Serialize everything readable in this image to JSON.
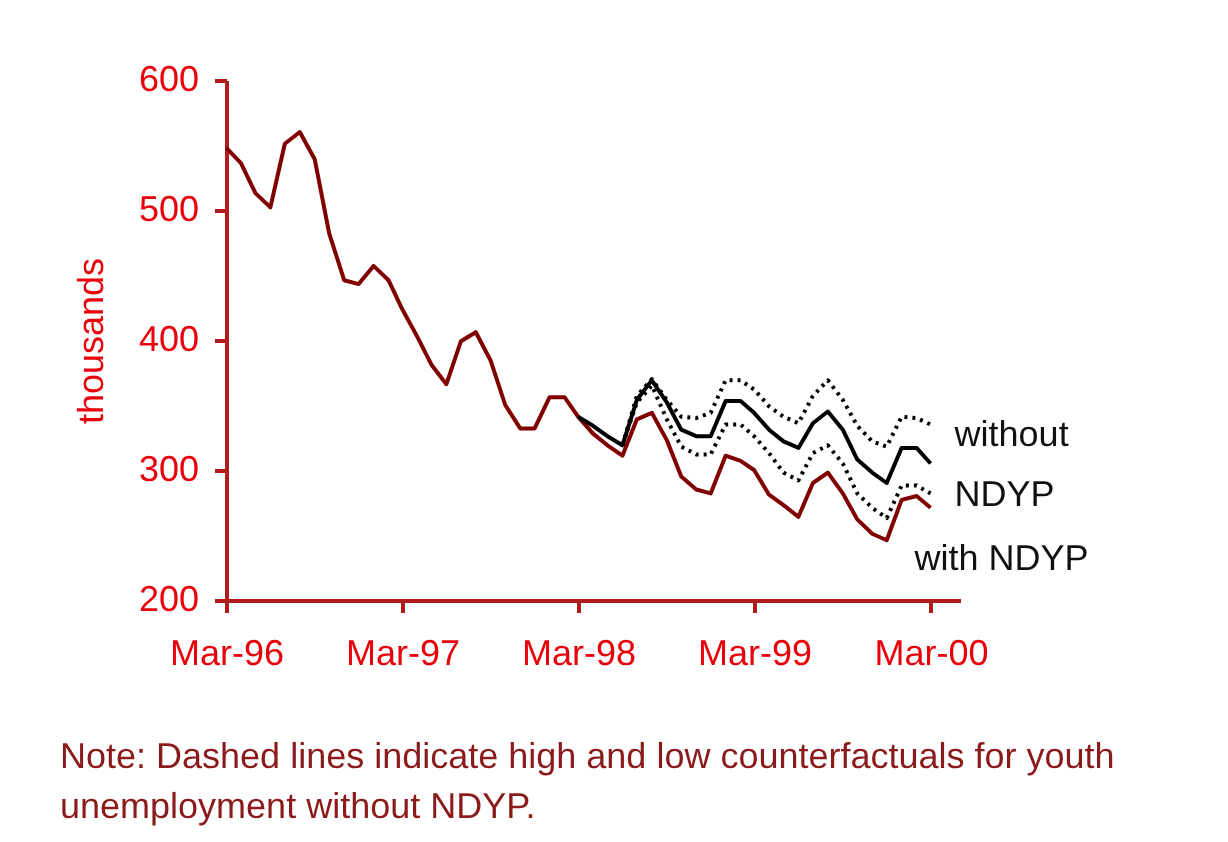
{
  "chart_data": {
    "type": "line",
    "ylabel": "thousands",
    "annotations": [
      "Note: Dashed lines indicate high and low counterfactuals for youth unemployment without NDYP."
    ],
    "xlim": [
      "1996-03",
      "2000-05"
    ],
    "xticks": [
      {
        "value": "1996-03",
        "label": "Mar-96"
      },
      {
        "value": "1997-03",
        "label": "Mar-97"
      },
      {
        "value": "1998-03",
        "label": "Mar-98"
      },
      {
        "value": "1999-03",
        "label": "Mar-99"
      },
      {
        "value": "2000-03",
        "label": "Mar-00"
      }
    ],
    "ylim": [
      200,
      600
    ],
    "yticks": [
      200,
      300,
      400,
      500,
      600
    ],
    "grid": false,
    "series": [
      {
        "name": "with NDYP",
        "color": "#800000",
        "line_style": "solid",
        "x": [
          "1996-03",
          "1996-04",
          "1996-05",
          "1996-06",
          "1996-07",
          "1996-08",
          "1996-09",
          "1996-10",
          "1996-11",
          "1996-12",
          "1997-01",
          "1997-02",
          "1997-03",
          "1997-04",
          "1997-05",
          "1997-06",
          "1997-07",
          "1997-08",
          "1997-09",
          "1997-10",
          "1997-11",
          "1997-12",
          "1998-01",
          "1998-02",
          "1998-03",
          "1998-04",
          "1998-05",
          "1998-06",
          "1998-07",
          "1998-08",
          "1998-09",
          "1998-10",
          "1998-11",
          "1998-12",
          "1999-01",
          "1999-02",
          "1999-03",
          "1999-04",
          "1999-05",
          "1999-06",
          "1999-07",
          "1999-08",
          "1999-09",
          "1999-10",
          "1999-11",
          "1999-12",
          "2000-01",
          "2000-02",
          "2000-03"
        ],
        "values": [
          548,
          536,
          513,
          502,
          551,
          560,
          539,
          482,
          446,
          443,
          457,
          446,
          424,
          403,
          381,
          366,
          399,
          406,
          384,
          350,
          332,
          332,
          356,
          356,
          341,
          328,
          319,
          311,
          339,
          344,
          323,
          295,
          285,
          282,
          311,
          307,
          300,
          281,
          273,
          264,
          290,
          298,
          282,
          262,
          251,
          246,
          277,
          280,
          271
        ]
      },
      {
        "name": "without NDYP",
        "color": "#000000",
        "line_style": "solid",
        "x": [
          "1998-03",
          "1998-04",
          "1998-05",
          "1998-06",
          "1998-07",
          "1998-08",
          "1998-09",
          "1998-10",
          "1998-11",
          "1998-12",
          "1999-01",
          "1999-02",
          "1999-03",
          "1999-04",
          "1999-05",
          "1999-06",
          "1999-07",
          "1999-08",
          "1999-09",
          "1999-10",
          "1999-11",
          "1999-12",
          "2000-01",
          "2000-02",
          "2000-03"
        ],
        "values": [
          341,
          334,
          326,
          319,
          354,
          369,
          352,
          331,
          326,
          326,
          353,
          353,
          344,
          331,
          322,
          317,
          336,
          345,
          331,
          308,
          298,
          290,
          317,
          317,
          305
        ]
      },
      {
        "color": "#000000",
        "line_style": "dotted",
        "x": [
          "1998-06",
          "1998-07",
          "1998-08",
          "1998-09",
          "1998-10",
          "1998-11",
          "1998-12",
          "1999-01",
          "1999-02",
          "1999-03",
          "1999-04",
          "1999-05",
          "1999-06",
          "1999-07",
          "1999-08",
          "1999-09",
          "1999-10",
          "1999-11",
          "1999-12",
          "2000-01",
          "2000-02",
          "2000-03"
        ],
        "values": [
          319,
          357,
          370,
          354,
          341,
          340,
          344,
          369,
          369,
          362,
          349,
          341,
          336,
          357,
          369,
          354,
          334,
          322,
          318,
          341,
          340,
          335
        ]
      },
      {
        "color": "#000000",
        "line_style": "dotted",
        "x": [
          "1998-06",
          "1998-07",
          "1998-08",
          "1998-09",
          "1998-10",
          "1998-11",
          "1998-12",
          "1999-01",
          "1999-02",
          "1999-03",
          "1999-04",
          "1999-05",
          "1999-06",
          "1999-07",
          "1999-08",
          "1999-09",
          "1999-10",
          "1999-11",
          "1999-12",
          "2000-01",
          "2000-02",
          "2000-03"
        ],
        "values": [
          319,
          352,
          365,
          339,
          318,
          312,
          312,
          335,
          335,
          326,
          313,
          298,
          292,
          313,
          319,
          305,
          282,
          271,
          263,
          288,
          288,
          282
        ]
      }
    ]
  }
}
